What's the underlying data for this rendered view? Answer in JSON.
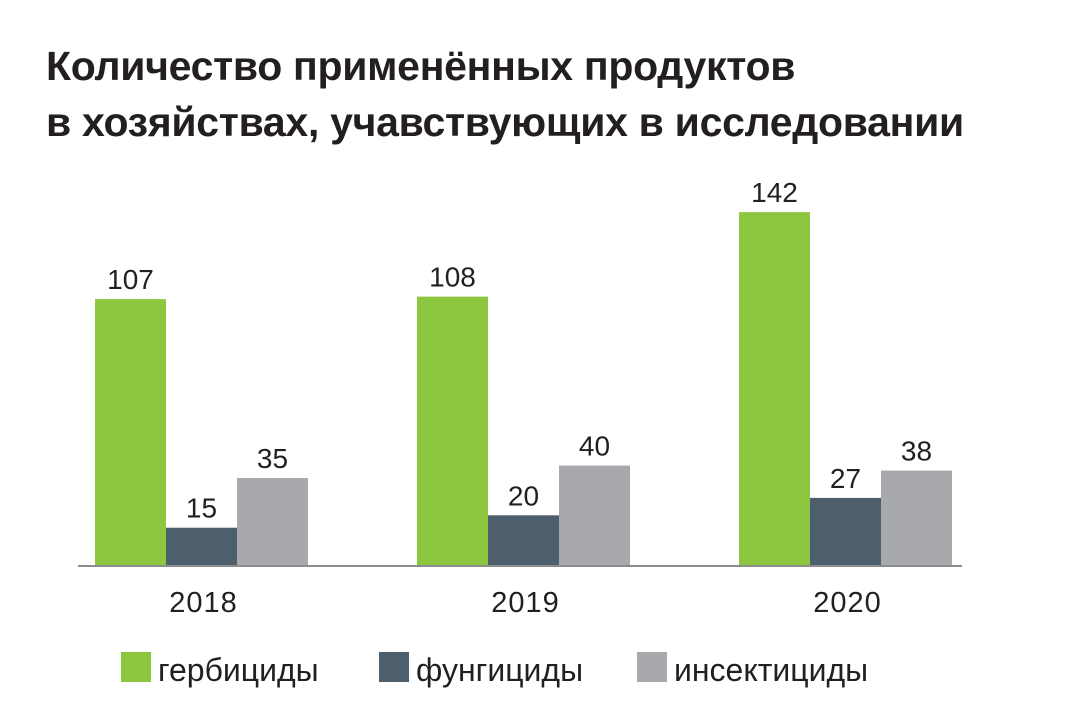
{
  "chart_data": {
    "type": "bar",
    "title": [
      "Количество применённых продуктов",
      "в хозяйствах, учавствующих в исследовании"
    ],
    "categories": [
      "2018",
      "2019",
      "2020"
    ],
    "series": [
      {
        "name": "гербициды",
        "values": [
          107,
          108,
          142
        ],
        "color": "#8dc63f"
      },
      {
        "name": "фунгициды",
        "values": [
          15,
          20,
          27
        ],
        "color": "#4d5e6d"
      },
      {
        "name": "инсектициды",
        "values": [
          35,
          40,
          38
        ],
        "color": "#a7a9ac"
      }
    ],
    "xlabel": "",
    "ylabel": "",
    "ylim": [
      0,
      142
    ],
    "grid": false,
    "legend_position": "bottom",
    "data_labels": true
  }
}
